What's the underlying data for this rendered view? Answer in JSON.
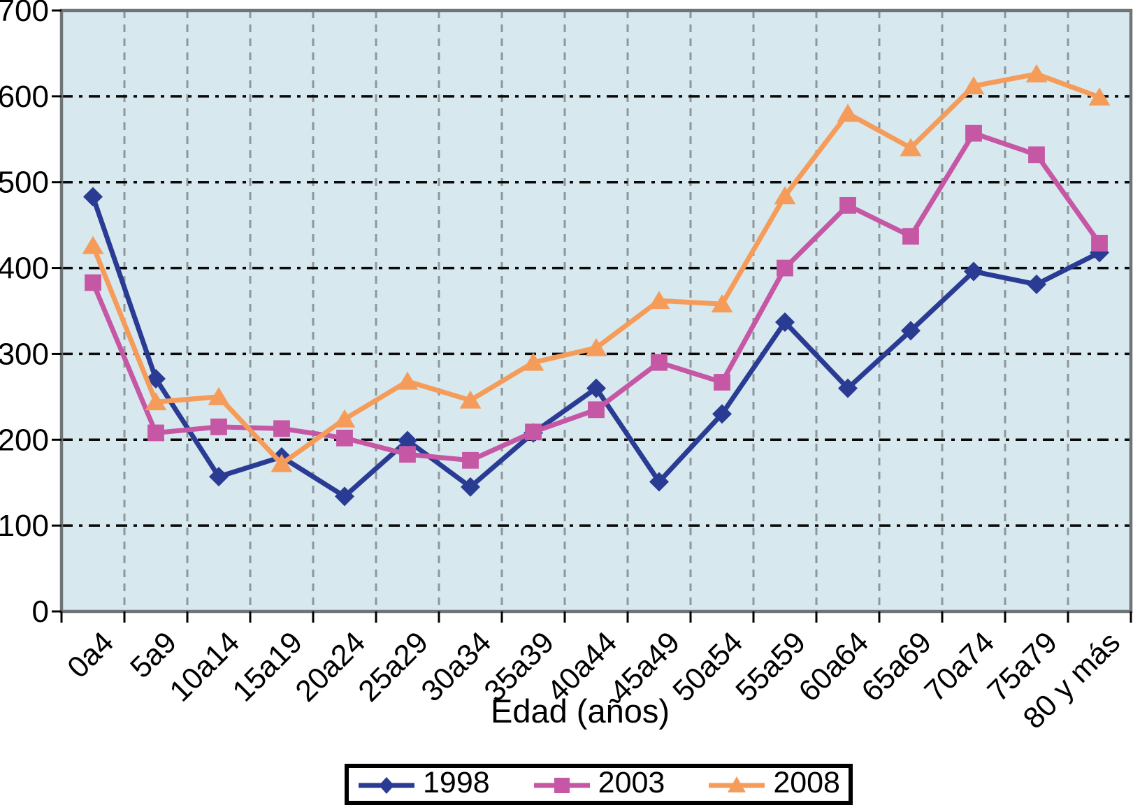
{
  "chart_data": {
    "type": "line",
    "title": "",
    "xlabel": "Edad (años)",
    "ylabel": "",
    "categories": [
      "0a4",
      "5a9",
      "10a14",
      "15a19",
      "20a24",
      "25a29",
      "30a34",
      "35a39",
      "40a44",
      "45a49",
      "50a54",
      "55a59",
      "60a64",
      "65a69",
      "70a74",
      "75a79",
      "80 y más"
    ],
    "series": [
      {
        "name": "1998",
        "marker": "diamond",
        "color": "#2A3B94",
        "values": [
          483,
          271,
          157,
          180,
          134,
          199,
          145,
          208,
          260,
          151,
          230,
          337,
          260,
          327,
          396,
          381,
          418
        ]
      },
      {
        "name": "2003",
        "marker": "square",
        "color": "#C657A4",
        "values": [
          383,
          208,
          215,
          213,
          202,
          183,
          176,
          209,
          235,
          290,
          267,
          400,
          473,
          437,
          557,
          532,
          429
        ]
      },
      {
        "name": "2008",
        "marker": "triangle",
        "color": "#F59C5A",
        "values": [
          426,
          244,
          250,
          172,
          224,
          268,
          246,
          290,
          307,
          362,
          358,
          484,
          580,
          540,
          612,
          626,
          599
        ]
      }
    ],
    "ylim": [
      0,
      700
    ],
    "ytick_step": 100,
    "yticks": [
      0,
      100,
      200,
      300,
      400,
      500,
      600,
      700
    ],
    "legend_position": "bottom-center",
    "grid": {
      "horizontal": "black dash-dot",
      "vertical": "gray dashed",
      "on": true
    },
    "plot_bg": "#D7E8EE",
    "colors": {
      "plot_border": "#6F7577",
      "vertical_grid": "#8E979C",
      "horizontal_grid": "#0A0A0A",
      "axis_text": "#000000"
    }
  }
}
